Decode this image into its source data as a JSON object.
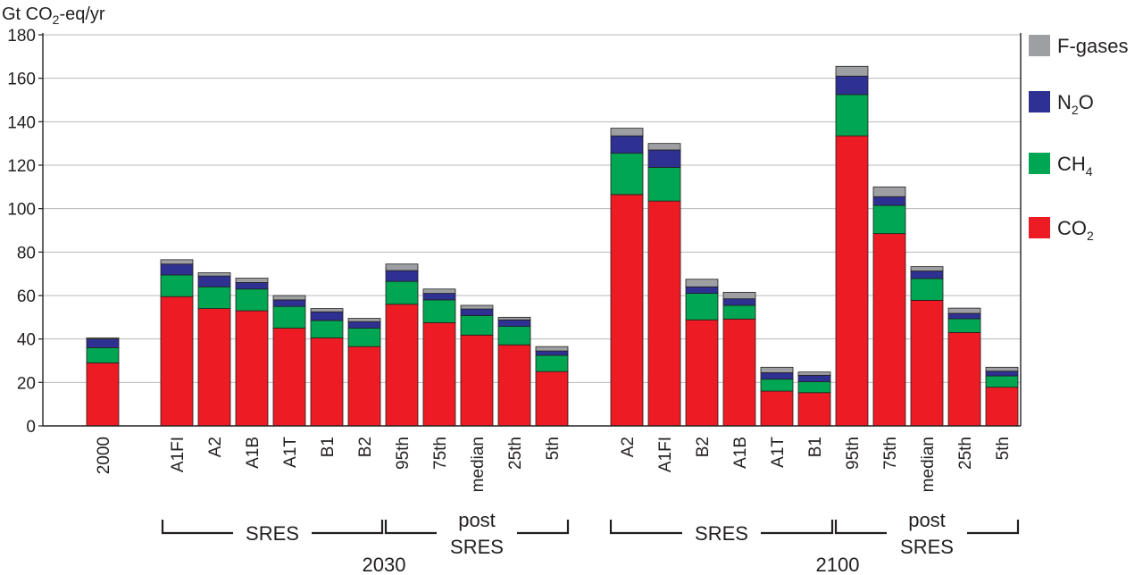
{
  "chart_data": {
    "type": "bar",
    "stacked": true,
    "ylabel_main": "Gt CO",
    "ylabel_sub": "2",
    "ylabel_rest": "-eq/yr",
    "ylim": [
      0,
      180
    ],
    "yticks": [
      0,
      20,
      40,
      60,
      80,
      100,
      120,
      140,
      160,
      180
    ],
    "grid": true,
    "legend_position": "right",
    "colors": {
      "CO2": "#ed1c24",
      "CH4": "#00a651",
      "N2O": "#2e3192",
      "F-gases": "#9d9fa2"
    },
    "legend": [
      {
        "key": "F-gases",
        "main": "F-gases",
        "sub": ""
      },
      {
        "key": "N2O",
        "main": "N",
        "sub": "2",
        "rest": "O"
      },
      {
        "key": "CH4",
        "main": "CH",
        "sub": "4",
        "rest": ""
      },
      {
        "key": "CO2",
        "main": "CO",
        "sub": "2",
        "rest": ""
      }
    ],
    "categories": [
      "2000",
      "A1FI",
      "A2",
      "A1B",
      "A1T",
      "B1",
      "B2",
      "95th",
      "75th",
      "median",
      "25th",
      "5th",
      "A2",
      "A1FI",
      "B2",
      "A1B",
      "A1T",
      "B1",
      "95th",
      "75th",
      "median",
      "25th",
      "5th"
    ],
    "series": [
      {
        "name": "CO2",
        "values": [
          29,
          59.5,
          54,
          53,
          45,
          40.5,
          36.5,
          56,
          47.5,
          41.8,
          37.3,
          25,
          106.5,
          103.5,
          48.8,
          49.2,
          16,
          15.3,
          133.5,
          88.5,
          57.8,
          43,
          17.8
        ]
      },
      {
        "name": "CH4",
        "values": [
          7,
          10,
          10,
          10,
          10,
          8,
          8.5,
          10.5,
          10.5,
          9,
          8.5,
          7.5,
          19,
          15.5,
          12.2,
          6.3,
          5.5,
          5,
          19,
          13,
          10,
          6.3,
          5.2
        ]
      },
      {
        "name": "N2O",
        "values": [
          4,
          5,
          5,
          3,
          3,
          4,
          3,
          5,
          3,
          3,
          3,
          2,
          8,
          8,
          3,
          3,
          3,
          3,
          8.5,
          4,
          3.5,
          2.5,
          2.2
        ]
      },
      {
        "name": "F-gases",
        "values": [
          0.5,
          2,
          1.5,
          2,
          2,
          1.5,
          1.5,
          3,
          2,
          1.7,
          1.2,
          2,
          3.5,
          3,
          3.5,
          3,
          2.5,
          1.5,
          4.5,
          4.5,
          2,
          2.4,
          1.8
        ]
      }
    ],
    "group_labels": [
      {
        "label": "SRES",
        "year_set": 0
      },
      {
        "label_top": "post",
        "label_bottom": "SRES"
      },
      {
        "label": "SRES"
      },
      {
        "label_top": "post",
        "label_bottom": "SRES"
      }
    ],
    "years": [
      "2030",
      "2100"
    ]
  }
}
